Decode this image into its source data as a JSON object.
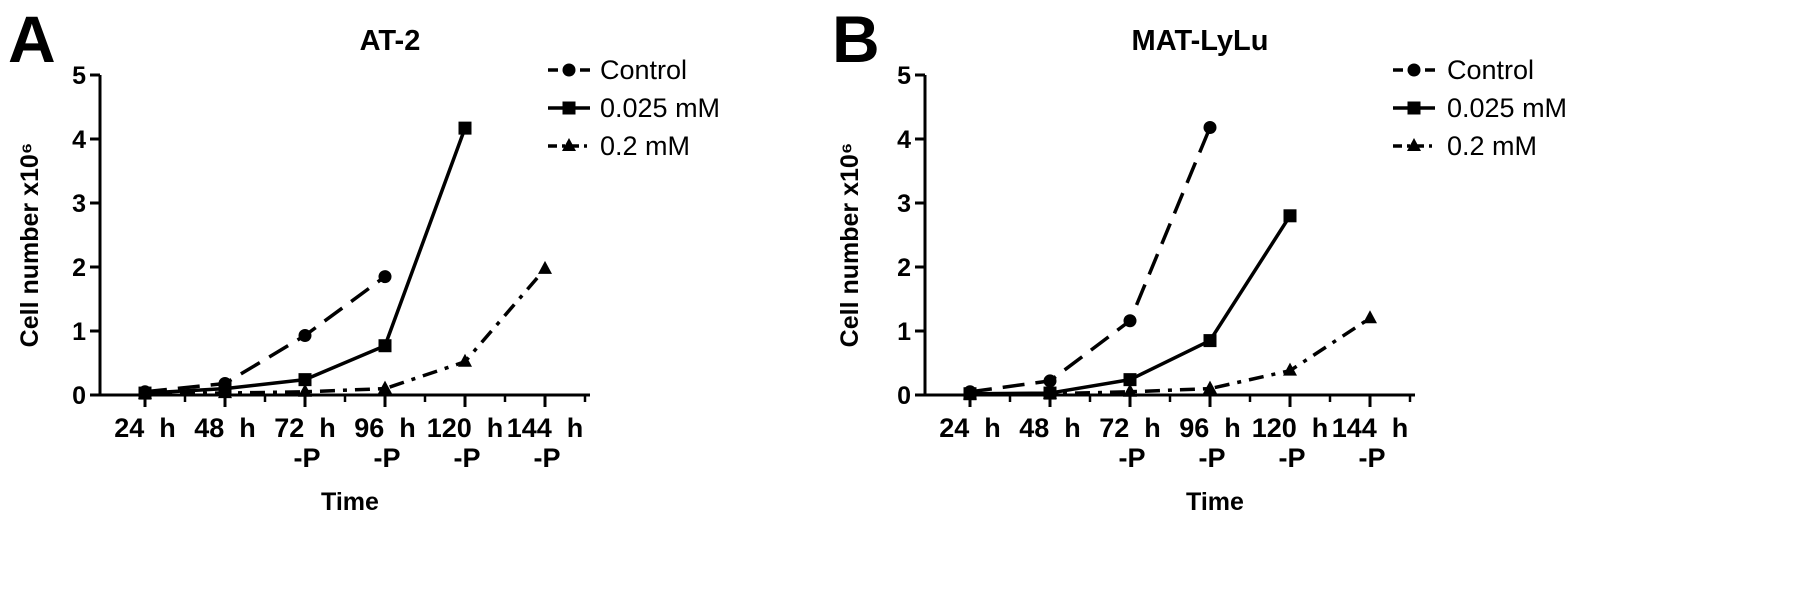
{
  "chart_data": [
    {
      "type": "line",
      "panel_letter": "A",
      "title": "AT-2",
      "xlabel": "Time",
      "ylabel": "Cell number  x10⁶",
      "categories": [
        [
          "24 h",
          ""
        ],
        [
          "48 h",
          ""
        ],
        [
          "72 h",
          "-P"
        ],
        [
          "96 h",
          "-P"
        ],
        [
          "120 h",
          "-P"
        ],
        [
          "144 h",
          "-P"
        ]
      ],
      "ylim": [
        0,
        5
      ],
      "yticks": [
        0,
        1,
        2,
        3,
        4,
        5
      ],
      "grid": false,
      "legend_position": "top-right",
      "series": [
        {
          "name": "Control",
          "marker": "circle",
          "line": "dashed",
          "values": [
            0.05,
            0.18,
            0.93,
            1.85,
            null,
            null
          ]
        },
        {
          "name": "0.025 mM",
          "marker": "square",
          "line": "solid",
          "values": [
            0.03,
            0.1,
            0.24,
            0.77,
            4.17,
            null
          ]
        },
        {
          "name": "0.2 mM",
          "marker": "triangle",
          "line": "dashdot",
          "values": [
            0.02,
            0.03,
            0.05,
            0.1,
            0.52,
            1.97
          ]
        }
      ]
    },
    {
      "type": "line",
      "panel_letter": "B",
      "title": "MAT-LyLu",
      "xlabel": "Time",
      "ylabel": "Cell number  x10⁶",
      "categories": [
        [
          "24 h",
          ""
        ],
        [
          "48 h",
          ""
        ],
        [
          "72 h",
          "-P"
        ],
        [
          "96 h",
          "-P"
        ],
        [
          "120 h",
          "-P"
        ],
        [
          "144 h",
          "-P"
        ]
      ],
      "ylim": [
        0,
        5
      ],
      "yticks": [
        0,
        1,
        2,
        3,
        4,
        5
      ],
      "grid": false,
      "legend_position": "top-right",
      "series": [
        {
          "name": "Control",
          "marker": "circle",
          "line": "dashed",
          "values": [
            0.05,
            0.22,
            1.16,
            4.18,
            null,
            null
          ]
        },
        {
          "name": "0.025 mM",
          "marker": "square",
          "line": "solid",
          "values": [
            0.02,
            0.03,
            0.24,
            0.85,
            2.8,
            null
          ]
        },
        {
          "name": "0.2 mM",
          "marker": "triangle",
          "line": "dashdot",
          "values": [
            0.01,
            0.02,
            0.05,
            0.1,
            0.38,
            1.2
          ]
        }
      ]
    }
  ]
}
